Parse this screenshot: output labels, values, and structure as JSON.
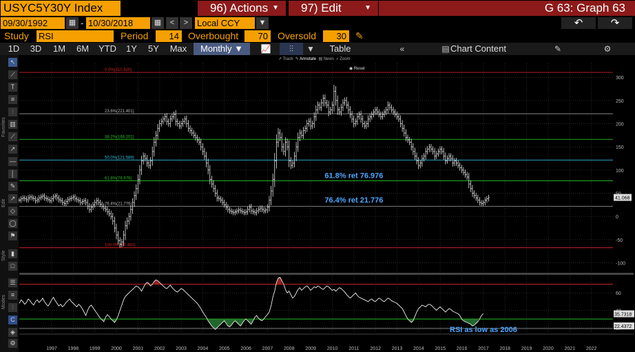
{
  "header": {
    "ticker": "USYC5Y30Y Index",
    "actions_label": "96) Actions",
    "edit_label": "97) Edit",
    "graph_title": "G 63: Graph 63"
  },
  "range": {
    "start_date": "09/30/1992",
    "dash": "-",
    "end_date": "10/30/2018",
    "currency": "Local CCY"
  },
  "study": {
    "study_label": "Study",
    "study_value": "RSI",
    "period_label": "Period",
    "period_value": "14",
    "overbought_label": "Overbought",
    "overbought_value": "70",
    "oversold_label": "Oversold",
    "oversold_value": "30"
  },
  "toolbar": {
    "periods": [
      "1D",
      "3D",
      "1M",
      "6M",
      "YTD",
      "1Y",
      "5Y",
      "Max"
    ],
    "frequency": "Monthly",
    "table_label": "Table",
    "chart_content_label": "Chart Content"
  },
  "annotate_bar": {
    "track": "Track",
    "annotate": "Annotate",
    "news": "News",
    "zoom": "Zoom",
    "reset": "Reset"
  },
  "side_labels": [
    "Favorites",
    "Edit",
    "Style",
    "Modes"
  ],
  "colors": {
    "accent": "#f5a000",
    "header_red": "#8c1a1a",
    "price": "#e8e8e8",
    "fib_red": "#cc2222",
    "fib_green": "#22bb22",
    "fib_cyan": "#33bbdd",
    "annotation_blue": "#4da6ff"
  },
  "chart_data": [
    {
      "type": "bar",
      "subtype": "ohlc",
      "title": "",
      "x_start_year": 1995.5,
      "x_step_years": 0.0833,
      "x_ticks": [
        1997,
        1998,
        1999,
        2000,
        2001,
        2002,
        2003,
        2004,
        2005,
        2006,
        2007,
        2008,
        2009,
        2010,
        2011,
        2012,
        2013,
        2014,
        2015,
        2016,
        2017,
        2018,
        2019,
        2020,
        2021,
        2022
      ],
      "xlim": [
        1995.5,
        2023.0
      ],
      "ylim": [
        -120,
        330
      ],
      "y_ticks": [
        -100,
        -50,
        0,
        50,
        100,
        150,
        200,
        250,
        300
      ],
      "grid": true,
      "last_value_label": "41.068",
      "fib_levels": [
        {
          "label": "0.0%(310.620)",
          "value": 310.62,
          "color": "#cc2222"
        },
        {
          "label": "23.6%(221.401)",
          "value": 221.401,
          "color": "#888888"
        },
        {
          "label": "38.2%(166.202)",
          "value": 166.202,
          "color": "#22bb22"
        },
        {
          "label": "50.0%(121.589)",
          "value": 121.589,
          "color": "#33bbdd"
        },
        {
          "label": "61.8%(76.976)",
          "value": 76.976,
          "color": "#22bb22"
        },
        {
          "label": "76.4%(21.776)",
          "value": 21.776,
          "color": "#888888"
        },
        {
          "label": "100.0%(-67.460)",
          "value": -67.46,
          "color": "#cc2222"
        }
      ],
      "annotations": [
        {
          "text": "61.8% ret 76.976",
          "x": 2011.0,
          "y": 83
        },
        {
          "text": "76.4% ret 21.776",
          "x": 2011.0,
          "y": 30
        }
      ],
      "closes": [
        35,
        38,
        40,
        38,
        36,
        40,
        42,
        40,
        38,
        34,
        36,
        40,
        42,
        44,
        40,
        38,
        36,
        34,
        38,
        42,
        44,
        40,
        36,
        34,
        30,
        28,
        32,
        36,
        38,
        40,
        42,
        38,
        36,
        34,
        30,
        32,
        34,
        30,
        22,
        15,
        20,
        25,
        30,
        34,
        30,
        26,
        22,
        18,
        15,
        10,
        6,
        0,
        -10,
        -25,
        -40,
        -52,
        -60,
        -55,
        -40,
        -20,
        -10,
        0,
        15,
        30,
        45,
        60,
        80,
        100,
        120,
        130,
        125,
        115,
        110,
        120,
        140,
        160,
        175,
        190,
        200,
        205,
        210,
        215,
        205,
        200,
        210,
        215,
        220,
        205,
        200,
        195,
        200,
        205,
        210,
        200,
        190,
        185,
        180,
        175,
        170,
        165,
        160,
        150,
        140,
        130,
        115,
        100,
        80,
        70,
        60,
        50,
        40,
        38,
        35,
        30,
        25,
        20,
        15,
        12,
        10,
        8,
        10,
        12,
        14,
        12,
        10,
        8,
        10,
        15,
        20,
        12,
        10,
        8,
        12,
        15,
        18,
        15,
        12,
        14,
        20,
        35,
        55,
        80,
        120,
        160,
        180,
        170,
        150,
        140,
        160,
        150,
        120,
        110,
        115,
        130,
        150,
        170,
        180,
        175,
        185,
        190,
        200,
        205,
        195,
        200,
        215,
        230,
        240,
        235,
        245,
        255,
        245,
        240,
        225,
        230,
        240,
        270,
        250,
        230,
        225,
        235,
        245,
        250,
        240,
        230,
        220,
        210,
        200,
        205,
        215,
        220,
        210,
        200,
        195,
        200,
        210,
        215,
        220,
        225,
        230,
        225,
        220,
        215,
        220,
        225,
        230,
        240,
        235,
        230,
        225,
        220,
        215,
        210,
        200,
        190,
        180,
        170,
        165,
        160,
        150,
        140,
        130,
        120,
        110,
        115,
        125,
        130,
        140,
        145,
        150,
        145,
        140,
        130,
        135,
        140,
        145,
        140,
        130,
        120,
        125,
        130,
        125,
        115,
        120,
        115,
        110,
        105,
        100,
        95,
        90,
        85,
        70,
        60,
        50,
        45,
        40,
        35,
        30,
        28,
        30,
        35,
        38,
        41
      ],
      "range_pct": 8
    },
    {
      "type": "line",
      "title": "",
      "series": [
        {
          "name": "RSI",
          "x_start_year": 1995.5,
          "x_step_years": 0.0833
        }
      ],
      "ylim": [
        15,
        80
      ],
      "y_ticks": [
        20,
        40,
        60
      ],
      "overbought": 70,
      "oversold": 30,
      "last_values": [
        "35.7318",
        "22.4372"
      ],
      "annotation": "RSI as low as 2006",
      "values": [
        48,
        52,
        50,
        47,
        49,
        53,
        51,
        48,
        46,
        50,
        52,
        49,
        51,
        54,
        50,
        47,
        45,
        48,
        52,
        55,
        51,
        48,
        45,
        47,
        44,
        46,
        49,
        51,
        53,
        50,
        48,
        46,
        44,
        47,
        45,
        42,
        38,
        34,
        40,
        44,
        46,
        43,
        40,
        37,
        34,
        31,
        29,
        27,
        32,
        35,
        33,
        30,
        28,
        26,
        29,
        34,
        40,
        46,
        52,
        56,
        58,
        60,
        62,
        64,
        66,
        68,
        67,
        65,
        62,
        66,
        70,
        72,
        71,
        68,
        70,
        73,
        75,
        74,
        72,
        70,
        68,
        66,
        65,
        67,
        69,
        66,
        64,
        62,
        61,
        63,
        65,
        64,
        62,
        60,
        58,
        56,
        54,
        52,
        50,
        48,
        45,
        42,
        38,
        35,
        32,
        28,
        25,
        22,
        20,
        18,
        20,
        22,
        24,
        26,
        28,
        25,
        22,
        21,
        23,
        26,
        28,
        26,
        24,
        22,
        25,
        28,
        30,
        28,
        26,
        24,
        28,
        32,
        34,
        31,
        29,
        28,
        30,
        33,
        35,
        38,
        45,
        55,
        62,
        72,
        77,
        78,
        74,
        70,
        64,
        60,
        62,
        58,
        54,
        56,
        60,
        64,
        66,
        63,
        65,
        67,
        68,
        66,
        63,
        65,
        67,
        66,
        68,
        67,
        65,
        64,
        66,
        68,
        67,
        65,
        63,
        64,
        62,
        64,
        66,
        65,
        63,
        61,
        58,
        56,
        54,
        56,
        58,
        60,
        57,
        55,
        54,
        53,
        52,
        51,
        50,
        52,
        53,
        51,
        50,
        52,
        54,
        53,
        51,
        50,
        52,
        54,
        53,
        51,
        50,
        49,
        48,
        46,
        44,
        42,
        38,
        34,
        30,
        28,
        26,
        28,
        33,
        38,
        42,
        44,
        46,
        45,
        44,
        46,
        47,
        46,
        44,
        42,
        40,
        42,
        44,
        42,
        40,
        38,
        40,
        42,
        41,
        39,
        38,
        37,
        36,
        34,
        30,
        28,
        27,
        26,
        25,
        24,
        22,
        23,
        25,
        27,
        30,
        34,
        36
      ]
    }
  ]
}
